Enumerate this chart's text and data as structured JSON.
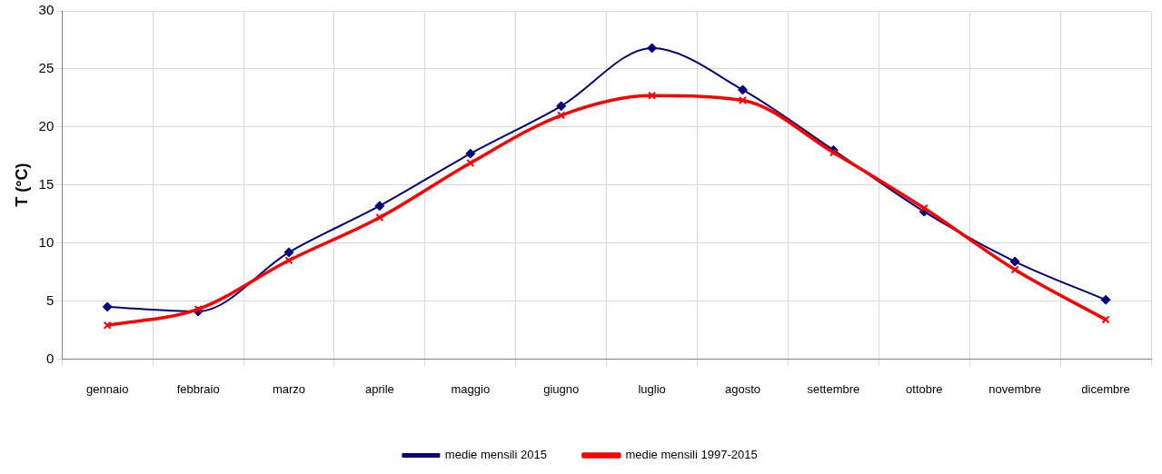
{
  "chart_data": {
    "type": "line",
    "ylabel": "T (°C)",
    "categories": [
      "gennaio",
      "febbraio",
      "marzo",
      "aprile",
      "maggio",
      "giugno",
      "luglio",
      "agosto",
      "settembre",
      "ottobre",
      "novembre",
      "dicembre"
    ],
    "series": [
      {
        "name": "medie mensili 2015",
        "color": "#000080",
        "marker": "diamond",
        "values": [
          4.5,
          4.1,
          9.2,
          13.2,
          17.7,
          21.8,
          26.8,
          23.2,
          18.0,
          12.7,
          8.4,
          5.1
        ]
      },
      {
        "name": "medie mensili 1997-2015",
        "color": "#ff0000",
        "marker": "cross",
        "values": [
          2.9,
          4.3,
          8.5,
          12.2,
          16.9,
          21.0,
          22.7,
          22.3,
          17.8,
          13.0,
          7.7,
          3.4
        ]
      }
    ],
    "ylim": [
      0,
      30
    ],
    "yticks": [
      0,
      5,
      10,
      15,
      20,
      25,
      30
    ],
    "grid": true,
    "legend": "bottom"
  }
}
